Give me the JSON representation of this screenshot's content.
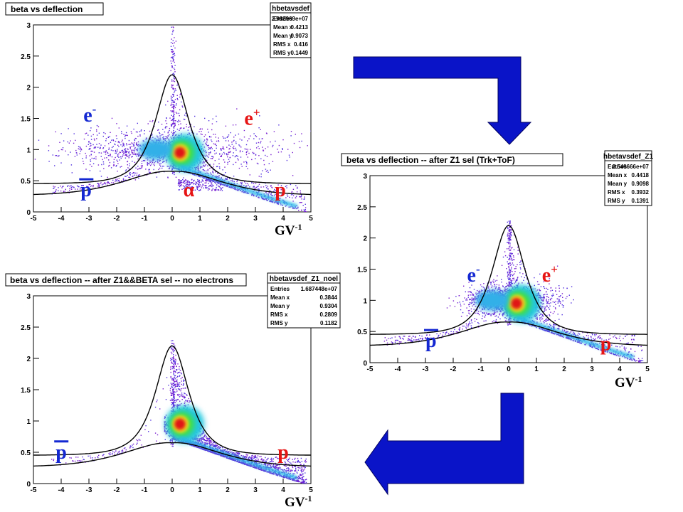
{
  "colors": {
    "arrow": "#0a14c8",
    "arrow_stroke": "#000060",
    "negative_label": "#1428d2",
    "positive_label": "#e61414"
  },
  "chart_data": [
    {
      "type": "heatmap",
      "title": "beta vs deflection",
      "xlim": [
        -5,
        5
      ],
      "ylim": [
        0,
        3
      ],
      "x_ticks": [
        "-5",
        "-4",
        "-3",
        "-2",
        "-1",
        "0",
        "1",
        "2",
        "3",
        "4",
        "5"
      ],
      "y_ticks": [
        "0",
        "0.5",
        "1",
        "1.5",
        "2",
        "2.5",
        "3"
      ],
      "xlabel": "GV",
      "xlabel_sup": "-1",
      "grid": false,
      "stats": {
        "name": "hbetavsdef",
        "rows": [
          {
            "label": "Entries",
            "value": "2.982969e+07"
          },
          {
            "label": "Mean x",
            "value": "0.4213"
          },
          {
            "label": "Mean y",
            "value": "0.9073"
          },
          {
            "label": "RMS x",
            "value": "0.416"
          },
          {
            "label": "RMS y",
            "value": "0.1449"
          }
        ]
      },
      "annotations": [
        {
          "text": "e",
          "sup": "-",
          "x": -3.2,
          "y": 1.45,
          "color": "negative"
        },
        {
          "text": "e",
          "sup": "+",
          "x": 2.6,
          "y": 1.4,
          "color": "positive"
        },
        {
          "text": "p",
          "sup": "",
          "x": -3.3,
          "y": 0.25,
          "color": "negative",
          "overline": true
        },
        {
          "text": "α",
          "sup": "",
          "x": 0.4,
          "y": 0.25,
          "color": "positive"
        },
        {
          "text": "p",
          "sup": "",
          "x": 3.7,
          "y": 0.25,
          "color": "positive"
        }
      ],
      "populations": {
        "electrons": true,
        "positrons": true,
        "alpha": true
      }
    },
    {
      "type": "heatmap",
      "title": "beta vs deflection -- after Z1 sel (Trk+ToF)",
      "xlim": [
        -5,
        5
      ],
      "ylim": [
        0,
        3
      ],
      "x_ticks": [
        "-5",
        "-4",
        "-3",
        "-2",
        "-1",
        "0",
        "1",
        "2",
        "3",
        "4",
        "5"
      ],
      "y_ticks": [
        "0",
        "0.5",
        "1",
        "1.5",
        "2",
        "2.5",
        "3"
      ],
      "xlabel": "GV",
      "xlabel_sup": "-1",
      "grid": false,
      "stats": {
        "name": "hbetavsdef_Z1",
        "rows": [
          {
            "label": "Entries",
            "value": "2.540666e+07"
          },
          {
            "label": "Mean x",
            "value": "0.4418"
          },
          {
            "label": "Mean y",
            "value": "0.9098"
          },
          {
            "label": "RMS x",
            "value": "0.3932"
          },
          {
            "label": "RMS y",
            "value": "0.1391"
          }
        ]
      },
      "annotations": [
        {
          "text": "e",
          "sup": "-",
          "x": -1.5,
          "y": 1.3,
          "color": "negative"
        },
        {
          "text": "e",
          "sup": "+",
          "x": 1.2,
          "y": 1.3,
          "color": "positive"
        },
        {
          "text": "p",
          "sup": "",
          "x": -3.0,
          "y": 0.25,
          "color": "negative",
          "overline": true
        },
        {
          "text": "p",
          "sup": "",
          "x": 3.3,
          "y": 0.2,
          "color": "positive"
        }
      ],
      "populations": {
        "electrons": true,
        "positrons": true,
        "alpha": false
      }
    },
    {
      "type": "heatmap",
      "title": "beta vs deflection -- after Z1&&BETA sel -- no electrons",
      "xlim": [
        -5,
        5
      ],
      "ylim": [
        0,
        3
      ],
      "x_ticks": [
        "-5",
        "-4",
        "-3",
        "-2",
        "-1",
        "0",
        "1",
        "2",
        "3",
        "4",
        "5"
      ],
      "y_ticks": [
        "0",
        "0.5",
        "1",
        "1.5",
        "2",
        "2.5",
        "3"
      ],
      "xlabel": "GV",
      "xlabel_sup": "-1",
      "grid": false,
      "stats": {
        "name": "hbetavsdef_Z1_noel",
        "rows": [
          {
            "label": "Entries",
            "value": "1.687448e+07"
          },
          {
            "label": "Mean x",
            "value": "0.3844"
          },
          {
            "label": "Mean y",
            "value": "0.9304"
          },
          {
            "label": "RMS x",
            "value": "0.2809"
          },
          {
            "label": "RMS y",
            "value": "0.1182"
          }
        ]
      },
      "annotations": [
        {
          "text": "p",
          "sup": "",
          "x": -4.2,
          "y": 0.4,
          "color": "negative",
          "overline": true
        },
        {
          "text": "p",
          "sup": "",
          "x": 3.8,
          "y": 0.4,
          "color": "positive"
        }
      ],
      "populations": {
        "electrons": false,
        "positrons": false,
        "alpha": false
      }
    }
  ]
}
